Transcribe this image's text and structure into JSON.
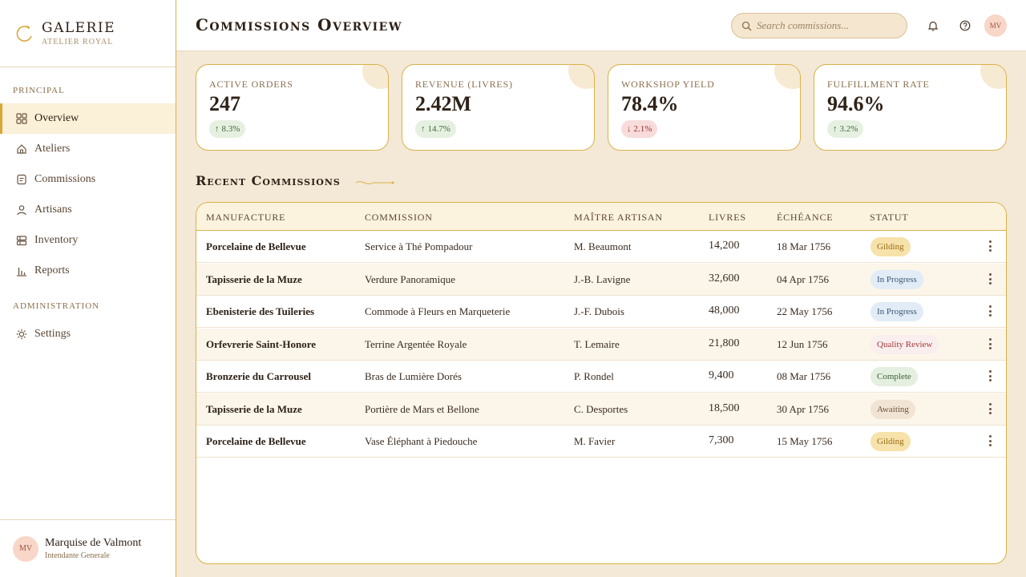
{
  "brand": {
    "title": "Galerie",
    "subtitle": "Atelier Royal"
  },
  "sidebar": {
    "section_principal": "Principal",
    "section_admin": "Administration",
    "items": [
      {
        "label": "Overview",
        "icon": "grid-icon",
        "active": true
      },
      {
        "label": "Ateliers",
        "icon": "home-icon"
      },
      {
        "label": "Commissions",
        "icon": "document-icon"
      },
      {
        "label": "Artisans",
        "icon": "user-icon"
      },
      {
        "label": "Inventory",
        "icon": "inventory-icon"
      },
      {
        "label": "Reports",
        "icon": "bar-chart-icon"
      }
    ],
    "admin_items": [
      {
        "label": "Settings",
        "icon": "gear-icon"
      }
    ]
  },
  "profile": {
    "initials": "MV",
    "name": "Marquise de Valmont",
    "role": "Intendante Generale"
  },
  "header": {
    "title": "Commissions Overview",
    "search_placeholder": "Search commissions...",
    "avatar_initials": "MV"
  },
  "stats": [
    {
      "label": "Active Orders",
      "value": "247",
      "delta": "8.3%",
      "direction": "up"
    },
    {
      "label": "Revenue (Livres)",
      "value": "2.42M",
      "delta": "14.7%",
      "direction": "up"
    },
    {
      "label": "Workshop Yield",
      "value": "78.4%",
      "delta": "2.1%",
      "direction": "down"
    },
    {
      "label": "Fulfillment Rate",
      "value": "94.6%",
      "delta": "3.2%",
      "direction": "up"
    }
  ],
  "recent": {
    "title": "Recent Commissions",
    "columns": [
      "Manufacture",
      "Commission",
      "Maître Artisan",
      "Livres",
      "Échéance",
      "Statut"
    ],
    "rows": [
      {
        "manufacture": "Porcelaine de Bellevue",
        "commission": "Service à Thé Pompadour",
        "artisan": "M. Beaumont",
        "livres": "14,200",
        "due": "18 Mar 1756",
        "status": "Gilding"
      },
      {
        "manufacture": "Tapisserie de la Muze",
        "commission": "Verdure Panoramique",
        "artisan": "J.-B. Lavigne",
        "livres": "32,600",
        "due": "04 Apr 1756",
        "status": "In Progress"
      },
      {
        "manufacture": "Ebenisterie des Tuileries",
        "commission": "Commode à Fleurs en Marqueterie",
        "artisan": "J.-F. Dubois",
        "livres": "48,000",
        "due": "22 May 1756",
        "status": "In Progress"
      },
      {
        "manufacture": "Orfevrerie Saint-Honore",
        "commission": "Terrine Argentée Royale",
        "artisan": "T. Lemaire",
        "livres": "21,800",
        "due": "12 Jun 1756",
        "status": "Quality Review"
      },
      {
        "manufacture": "Bronzerie du Carrousel",
        "commission": "Bras de Lumière Dorés",
        "artisan": "P. Rondel",
        "livres": "9,400",
        "due": "08 Mar 1756",
        "status": "Complete"
      },
      {
        "manufacture": "Tapisserie de la Muze",
        "commission": "Portière de Mars et Bellone",
        "artisan": "C. Desportes",
        "livres": "18,500",
        "due": "30 Apr 1756",
        "status": "Awaiting"
      },
      {
        "manufacture": "Porcelaine de Bellevue",
        "commission": "Vase Éléphant à Piedouche",
        "artisan": "M. Favier",
        "livres": "7,300",
        "due": "15 May 1756",
        "status": "Gilding"
      }
    ]
  },
  "status_colors": {
    "Gilding": {
      "bg": "#f6e2aa",
      "fg": "#9a6e14"
    },
    "In Progress": {
      "bg": "#e2ecf6",
      "fg": "#3a5676"
    },
    "Quality Review": {
      "bg": "#fbeeee",
      "fg": "#9e3a3a"
    },
    "Complete": {
      "bg": "#e4efdf",
      "fg": "#3c5f36"
    },
    "Awaiting": {
      "bg": "#f1e4d4",
      "fg": "#6e5338"
    }
  },
  "colors": {
    "accent": "#d9b24a",
    "background": "#f4e8d6"
  }
}
